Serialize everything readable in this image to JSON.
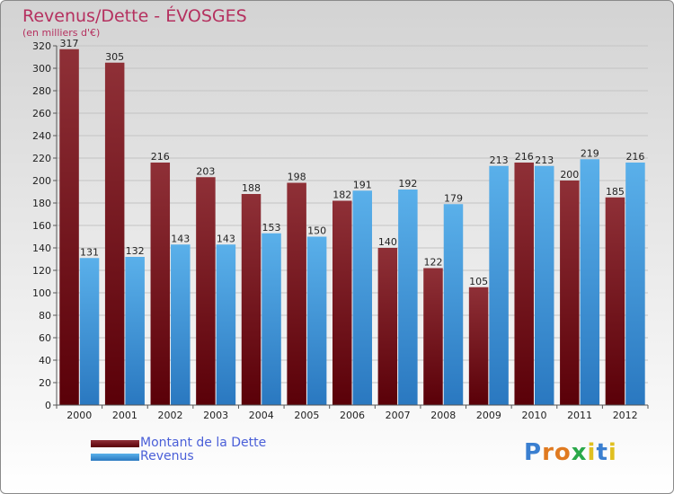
{
  "header": {
    "title": "Revenus/Dette - ÉVOSGES",
    "subtitle": "(en milliers d'€)"
  },
  "colors": {
    "dette": "#6b0f12",
    "revenus": "#4aa3e0",
    "accent": "#b5305f",
    "legend_text": "#4a5fd8"
  },
  "chart_data": {
    "type": "bar",
    "categories": [
      "2000",
      "2001",
      "2002",
      "2003",
      "2004",
      "2005",
      "2006",
      "2007",
      "2008",
      "2009",
      "2010",
      "2011",
      "2012"
    ],
    "series": [
      {
        "name": "Montant de la Dette",
        "values": [
          317,
          305,
          216,
          203,
          188,
          198,
          182,
          140,
          122,
          105,
          216,
          200,
          185
        ]
      },
      {
        "name": "Revenus",
        "values": [
          131,
          132,
          143,
          143,
          153,
          150,
          191,
          192,
          179,
          213,
          213,
          219,
          216
        ]
      }
    ],
    "ylim": [
      0,
      320
    ],
    "yticks": [
      0,
      20,
      40,
      60,
      80,
      100,
      120,
      140,
      160,
      180,
      200,
      220,
      240,
      260,
      280,
      300,
      320
    ],
    "grid": true,
    "legend_position": "bottom-left"
  },
  "legend": {
    "items": [
      {
        "label": "Montant de la Dette",
        "color": "#6b0f12"
      },
      {
        "label": "Revenus",
        "color": "#4aa3e0"
      }
    ]
  },
  "logo": {
    "letters": [
      "P",
      "r",
      "o",
      "x",
      "i",
      "t",
      "i"
    ],
    "colors": [
      "#3a7fd0",
      "#e07a20",
      "#e07a20",
      "#2aa84a",
      "#e0c020",
      "#3a7fd0",
      "#e0c020"
    ]
  }
}
